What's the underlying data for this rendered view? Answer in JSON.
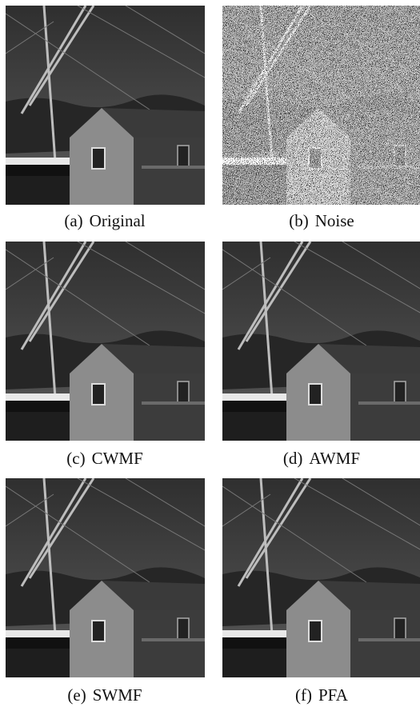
{
  "figure": {
    "panels": [
      {
        "label": "(a)",
        "name": "Original"
      },
      {
        "label": "(b)",
        "name": "Noise"
      },
      {
        "label": "(c)",
        "name": "CWMF"
      },
      {
        "label": "(d)",
        "name": "AWMF"
      },
      {
        "label": "(e)",
        "name": "SWMF"
      },
      {
        "label": "(f)",
        "name": "PFA"
      }
    ]
  }
}
